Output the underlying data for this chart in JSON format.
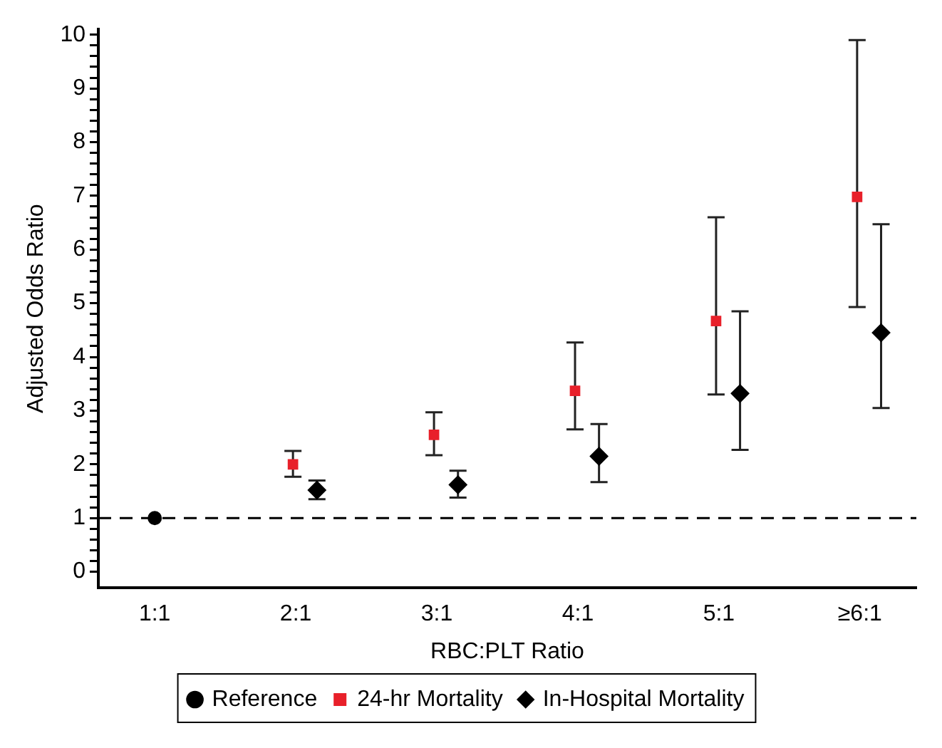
{
  "chart_data": {
    "type": "scatter",
    "xlabel": "RBC:PLT Ratio",
    "ylabel": "Adjusted Odds Ratio",
    "categories": [
      "1:1",
      "2:1",
      "3:1",
      "4:1",
      "5:1",
      "≥6:1"
    ],
    "series": [
      {
        "name": "Reference",
        "color": "#000000",
        "marker": "circle",
        "x": [
          "1:1"
        ],
        "values": [
          1
        ]
      },
      {
        "name": "24-hr Mortality",
        "color": "#e8202a",
        "marker": "square",
        "x": [
          "2:1",
          "3:1",
          "4:1",
          "5:1",
          "≥6:1"
        ],
        "values": [
          2.0,
          2.55,
          3.37,
          4.67,
          6.98
        ],
        "errors": [
          [
            1.77,
            2.25
          ],
          [
            2.17,
            2.97
          ],
          [
            2.65,
            4.27
          ],
          [
            3.3,
            6.6
          ],
          [
            4.93,
            9.9
          ]
        ]
      },
      {
        "name": "In-Hospital Mortality",
        "color": "#000000",
        "marker": "diamond",
        "x": [
          "2:1",
          "3:1",
          "4:1",
          "5:1",
          "≥6:1"
        ],
        "values": [
          1.52,
          1.62,
          2.15,
          3.32,
          4.45
        ],
        "errors": [
          [
            1.35,
            1.7
          ],
          [
            1.38,
            1.88
          ],
          [
            1.67,
            2.75
          ],
          [
            2.27,
            4.85
          ],
          [
            3.05,
            6.47
          ]
        ]
      }
    ],
    "ylim": [
      -0.3,
      10.1
    ],
    "yticks": [
      0,
      {
        "value": 0.2,
        "label": null
      },
      {
        "value": 0.4,
        "label": null
      },
      {
        "value": 0.6,
        "label": null
      },
      {
        "value": 0.8,
        "label": null
      },
      1,
      {
        "value": 1.2,
        "label": null
      },
      {
        "value": 1.4,
        "label": null
      },
      {
        "value": 1.6,
        "label": null
      },
      {
        "value": 1.8,
        "label": null
      },
      2,
      {
        "value": 2.2,
        "label": null
      },
      {
        "value": 2.4,
        "label": null
      },
      {
        "value": 2.6,
        "label": null
      },
      {
        "value": 2.8,
        "label": null
      },
      3,
      {
        "value": 3.2,
        "label": null
      },
      {
        "value": 3.4,
        "label": null
      },
      {
        "value": 3.6,
        "label": null
      },
      {
        "value": 3.8,
        "label": null
      },
      4,
      {
        "value": 4.2,
        "label": null
      },
      {
        "value": 4.4,
        "label": null
      },
      {
        "value": 4.6,
        "label": null
      },
      {
        "value": 4.8,
        "label": null
      },
      5,
      {
        "value": 5.2,
        "label": null
      },
      {
        "value": 5.4,
        "label": null
      },
      {
        "value": 5.6,
        "label": null
      },
      {
        "value": 5.8,
        "label": null
      },
      6,
      {
        "value": 6.2,
        "label": null
      },
      {
        "value": 6.4,
        "label": null
      },
      {
        "value": 6.6,
        "label": null
      },
      {
        "value": 6.8,
        "label": null
      },
      7,
      {
        "value": 7.2,
        "label": null
      },
      {
        "value": 7.4,
        "label": null
      },
      {
        "value": 7.6,
        "label": null
      },
      {
        "value": 7.8,
        "label": null
      },
      8,
      {
        "value": 8.2,
        "label": null
      },
      {
        "value": 8.4,
        "label": null
      },
      {
        "value": 8.6,
        "label": null
      },
      {
        "value": 8.8,
        "label": null
      },
      9,
      {
        "value": 9.2,
        "label": null
      },
      {
        "value": 9.4,
        "label": null
      },
      {
        "value": 9.6,
        "label": null
      },
      {
        "value": 9.8,
        "label": null
      },
      10
    ],
    "ref_lines": [
      {
        "axis": "y",
        "value": 1,
        "color": "#000000",
        "line_style": "dashed"
      }
    ],
    "grid": false,
    "legend": "bottom"
  }
}
